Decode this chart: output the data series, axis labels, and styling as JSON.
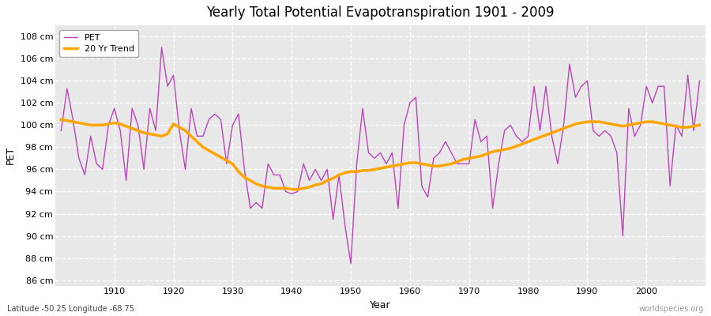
{
  "title": "Yearly Total Potential Evapotranspiration 1901 - 2009",
  "xlabel": "Year",
  "ylabel": "PET",
  "subtitle": "Latitude -50.25 Longitude -68.75",
  "watermark": "worldspecies.org",
  "pet_color": "#BB44BB",
  "trend_color": "#FFA500",
  "bg_color": "#FFFFFF",
  "plot_bg_color": "#E8E8E8",
  "ylim": [
    85.5,
    109
  ],
  "yticks": [
    86,
    88,
    90,
    92,
    94,
    96,
    98,
    100,
    102,
    104,
    106,
    108
  ],
  "xticks": [
    1910,
    1920,
    1930,
    1940,
    1950,
    1960,
    1970,
    1980,
    1990,
    2000
  ],
  "years": [
    1901,
    1902,
    1903,
    1904,
    1905,
    1906,
    1907,
    1908,
    1909,
    1910,
    1911,
    1912,
    1913,
    1914,
    1915,
    1916,
    1917,
    1918,
    1919,
    1920,
    1921,
    1922,
    1923,
    1924,
    1925,
    1926,
    1927,
    1928,
    1929,
    1930,
    1931,
    1932,
    1933,
    1934,
    1935,
    1936,
    1937,
    1938,
    1939,
    1940,
    1941,
    1942,
    1943,
    1944,
    1945,
    1946,
    1947,
    1948,
    1949,
    1950,
    1951,
    1952,
    1953,
    1954,
    1955,
    1956,
    1957,
    1958,
    1959,
    1960,
    1961,
    1962,
    1963,
    1964,
    1965,
    1966,
    1967,
    1968,
    1969,
    1970,
    1971,
    1972,
    1973,
    1974,
    1975,
    1976,
    1977,
    1978,
    1979,
    1980,
    1981,
    1982,
    1983,
    1984,
    1985,
    1986,
    1987,
    1988,
    1989,
    1990,
    1991,
    1992,
    1993,
    1994,
    1995,
    1996,
    1997,
    1998,
    1999,
    2000,
    2001,
    2002,
    2003,
    2004,
    2005,
    2006,
    2007,
    2008,
    2009
  ],
  "pet_values": [
    99.5,
    103.3,
    100.5,
    97.0,
    95.5,
    99.0,
    96.5,
    96.0,
    100.0,
    101.5,
    99.5,
    95.0,
    101.5,
    100.0,
    96.0,
    101.5,
    99.5,
    107.0,
    103.5,
    104.5,
    99.5,
    96.0,
    101.5,
    99.0,
    99.0,
    100.5,
    101.0,
    100.5,
    96.5,
    100.0,
    101.0,
    96.0,
    92.5,
    93.0,
    92.5,
    96.5,
    95.5,
    95.5,
    94.0,
    93.8,
    94.0,
    96.5,
    95.0,
    96.0,
    95.0,
    96.0,
    91.5,
    95.5,
    91.0,
    87.5,
    96.5,
    101.5,
    97.5,
    97.0,
    97.5,
    96.5,
    97.5,
    92.5,
    100.0,
    102.0,
    102.5,
    94.5,
    93.5,
    97.0,
    97.5,
    98.5,
    97.5,
    96.5,
    96.5,
    96.5,
    100.5,
    98.5,
    99.0,
    92.5,
    96.5,
    99.5,
    100.0,
    99.0,
    98.5,
    99.0,
    103.5,
    99.5,
    103.5,
    99.0,
    96.5,
    100.0,
    105.5,
    102.5,
    103.5,
    104.0,
    99.5,
    99.0,
    99.5,
    99.0,
    97.5,
    90.0,
    101.5,
    99.0,
    100.0,
    103.5,
    102.0,
    103.5,
    103.5,
    94.5,
    100.0,
    99.0,
    104.5,
    99.5,
    104.0
  ],
  "trend_years": [
    1901,
    1902,
    1903,
    1904,
    1905,
    1906,
    1907,
    1908,
    1909,
    1910,
    1911,
    1912,
    1913,
    1914,
    1915,
    1916,
    1917,
    1918,
    1919,
    1920,
    1921,
    1922,
    1923,
    1924,
    1925,
    1926,
    1927,
    1928,
    1929,
    1930,
    1931,
    1932,
    1933,
    1934,
    1935,
    1936,
    1937,
    1938,
    1939,
    1940,
    1941,
    1942,
    1943,
    1944,
    1945,
    1946,
    1947,
    1948,
    1949,
    1950,
    1951,
    1952,
    1953,
    1954,
    1955,
    1956,
    1957,
    1958,
    1959,
    1960,
    1961,
    1962,
    1963,
    1964,
    1965,
    1966,
    1967,
    1968,
    1969,
    1970,
    1971,
    1972,
    1973,
    1974,
    1975,
    1976,
    1977,
    1978,
    1979,
    1980,
    1981,
    1982,
    1983,
    1984,
    1985,
    1986,
    1987,
    1988,
    1989,
    1990,
    1991,
    1992,
    1993,
    1994,
    1995,
    1996,
    1997,
    1998,
    1999,
    2000,
    2001,
    2002,
    2003,
    2004,
    2005,
    2006,
    2007,
    2008,
    2009
  ],
  "trend_values": [
    100.5,
    100.4,
    100.3,
    100.2,
    100.1,
    100.0,
    100.0,
    100.0,
    100.1,
    100.2,
    100.1,
    99.9,
    99.7,
    99.5,
    99.3,
    99.2,
    99.1,
    99.0,
    99.2,
    100.1,
    99.8,
    99.5,
    99.0,
    98.5,
    98.0,
    97.7,
    97.4,
    97.1,
    96.8,
    96.5,
    95.8,
    95.3,
    95.0,
    94.7,
    94.5,
    94.4,
    94.3,
    94.3,
    94.3,
    94.2,
    94.2,
    94.3,
    94.4,
    94.6,
    94.7,
    95.0,
    95.2,
    95.5,
    95.7,
    95.8,
    95.8,
    95.9,
    95.9,
    96.0,
    96.1,
    96.2,
    96.3,
    96.4,
    96.5,
    96.6,
    96.6,
    96.5,
    96.4,
    96.3,
    96.3,
    96.4,
    96.5,
    96.7,
    96.9,
    97.0,
    97.1,
    97.2,
    97.4,
    97.6,
    97.7,
    97.8,
    97.9,
    98.1,
    98.3,
    98.5,
    98.7,
    98.9,
    99.1,
    99.3,
    99.5,
    99.7,
    99.9,
    100.1,
    100.2,
    100.3,
    100.3,
    100.3,
    100.2,
    100.1,
    100.0,
    99.9,
    100.0,
    100.1,
    100.2,
    100.3,
    100.3,
    100.2,
    100.1,
    100.0,
    99.9,
    99.8,
    99.8,
    99.9,
    100.0
  ]
}
